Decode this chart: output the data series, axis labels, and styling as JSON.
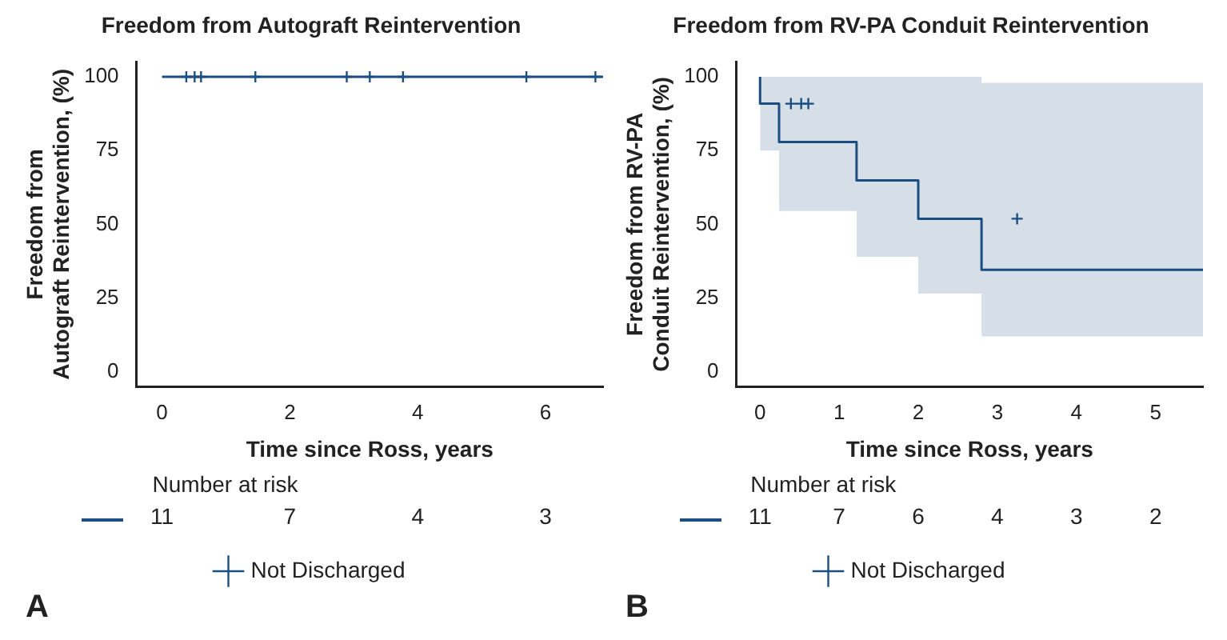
{
  "chart_data": [
    {
      "type": "step",
      "title": "Freedom from Autograft Reintervention",
      "xlabel": "Time since Ross, years",
      "ylabel": "Freedom from\nAutograft Reintervention, (%)",
      "xlim": [
        -0.4,
        6.9
      ],
      "xticks": [
        0,
        2,
        4,
        6
      ],
      "ylim": [
        -5,
        105
      ],
      "yticks": [
        0,
        25,
        50,
        75,
        100
      ],
      "grid": false,
      "legend": "bottom",
      "series": [
        {
          "color": "#1b4f80",
          "x": [
            0,
            6.9
          ],
          "values": [
            100,
            100
          ]
        },
        {
          "type": "scatter",
          "name": "Not Discharged",
          "marker": "cross",
          "color": "#1b4f80",
          "x": [
            0.38,
            0.51,
            0.61,
            1.46,
            2.89,
            3.25,
            3.77,
            5.7,
            6.78
          ],
          "values": [
            100,
            100,
            100,
            100,
            100,
            100,
            100,
            100,
            100
          ]
        }
      ],
      "annotations": [
        "Number at risk",
        "11",
        "7",
        "4",
        "3",
        "A"
      ]
    },
    {
      "type": "step",
      "title": "Freedom from RV-PA Conduit Reintervention",
      "xlabel": "Time since Ross, years",
      "ylabel": "Freedom from RV-PA\nConduit Reintervention, (%)",
      "xlim": [
        -0.3,
        5.6
      ],
      "xticks": [
        0,
        1,
        2,
        3,
        4,
        5
      ],
      "ylim": [
        -5,
        105
      ],
      "yticks": [
        0,
        25,
        50,
        75,
        100
      ],
      "grid": false,
      "legend": "bottom",
      "series": [
        {
          "color": "#1b4f80",
          "x": [
            0,
            0.24,
            1.22,
            2.0,
            2.8,
            4.62,
            5.6
          ],
          "values": [
            100,
            90.9,
            77.9,
            64.9,
            51.9,
            34.6,
            34.6
          ],
          "lower": [
            100,
            75,
            54.5,
            39,
            26.5,
            12,
            12
          ],
          "upper": [
            100,
            100,
            100,
            100,
            100,
            98,
            98
          ]
        },
        {
          "type": "scatter",
          "name": "Not Discharged",
          "marker": "cross",
          "color": "#1b4f80",
          "x": [
            0.39,
            0.52,
            0.61,
            3.25
          ],
          "values": [
            90.9,
            90.9,
            90.9,
            51.9
          ]
        }
      ],
      "annotations": [
        "Number at risk",
        "11",
        "7",
        "6",
        "4",
        "3",
        "2",
        "B"
      ]
    }
  ]
}
